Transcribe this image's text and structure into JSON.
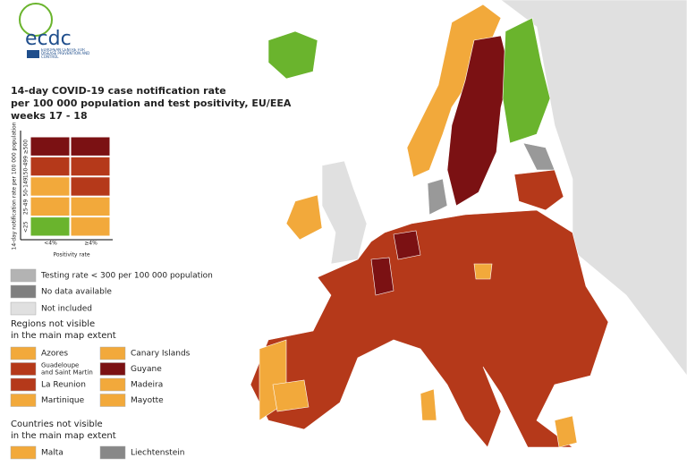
{
  "logo": {
    "name": "ecdc",
    "subtitle": "EUROPEAN CENTRE FOR DISEASE PREVENTION AND CONTROL"
  },
  "title": [
    "14-day COVID-19 case notification rate",
    "per 100 000 population and test positivity, EU/EEA",
    "weeks 17 - 18"
  ],
  "matrix": {
    "y_label": "14-day notification rate per 100 000 population",
    "rows": [
      "≥500",
      "150-499",
      "50-149",
      "25-49",
      "<25"
    ],
    "columns": [
      "<4%",
      "≥4%"
    ],
    "x_label": "Positivity rate",
    "cells": [
      [
        "#7b1113",
        "#7b1113"
      ],
      [
        "#b5391a",
        "#b5391a"
      ],
      [
        "#f2a93b",
        "#b5391a"
      ],
      [
        "#f2a93b",
        "#f2a93b"
      ],
      [
        "#6ab42d",
        "#f2a93b"
      ]
    ]
  },
  "legend": [
    {
      "label": "Testing rate < 300 per 100 000 population",
      "color": "#b3b3b3"
    },
    {
      "label": "No data available",
      "color": "#7f7f7f"
    },
    {
      "label": "Not included",
      "color": "#e0e0e0"
    }
  ],
  "regions": {
    "title": [
      "Regions not visible",
      "in the main map extent"
    ],
    "items": [
      {
        "label": "Azores",
        "color": "#f2a93b"
      },
      {
        "label": "Guadeloupe and Saint Martin",
        "color": "#b5391a"
      },
      {
        "label": "La Reunion",
        "color": "#b5391a"
      },
      {
        "label": "Martinique",
        "color": "#f2a93b"
      },
      {
        "label": "Canary Islands",
        "color": "#f2a93b"
      },
      {
        "label": "Guyane",
        "color": "#7b1113"
      },
      {
        "label": "Madeira",
        "color": "#f2a93b"
      },
      {
        "label": "Mayotte",
        "color": "#f2a93b"
      }
    ]
  },
  "countries": {
    "title": [
      "Countries not visible",
      "in the main map extent"
    ],
    "items": [
      {
        "label": "Malta",
        "color": "#f2a93b"
      },
      {
        "label": "Liechtenstein",
        "color": "#888888"
      }
    ]
  }
}
